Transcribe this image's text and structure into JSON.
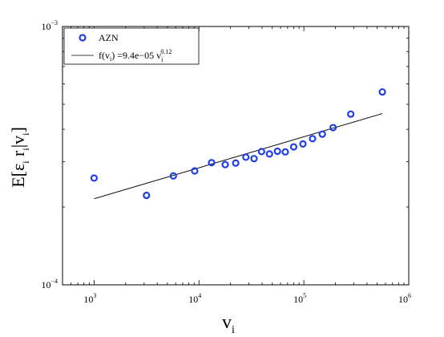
{
  "chart_data": {
    "type": "scatter",
    "x_scale": "log",
    "y_scale": "log",
    "xlim": [
      500,
      1000000
    ],
    "ylim": [
      0.0001,
      0.001
    ],
    "x_ticks": [
      {
        "value": 1000,
        "base": "10",
        "exp": "3"
      },
      {
        "value": 10000,
        "base": "10",
        "exp": "4"
      },
      {
        "value": 100000,
        "base": "10",
        "exp": "5"
      },
      {
        "value": 1000000,
        "base": "10",
        "exp": "6"
      }
    ],
    "y_ticks": [
      {
        "value": 0.0001,
        "base": "10",
        "exp": "−4"
      },
      {
        "value": 0.001,
        "base": "10",
        "exp": "−3"
      }
    ],
    "xlabel": {
      "main": "v",
      "sub": "i"
    },
    "ylabel": "E[ε_i r_i | v_i]",
    "ylabel_parts": {
      "p1": "E[ε",
      "s1": "i",
      "p2": " r",
      "s2": "i",
      "p3": "|v",
      "s3": "i",
      "p4": "]"
    },
    "legend": {
      "position": "top-left",
      "entries": [
        {
          "label": "AZN",
          "kind": "marker"
        },
        {
          "label": "f(v_i) =9.4e−05 v_i^0.12",
          "kind": "line",
          "parts": {
            "a": "f(v",
            "a_sub": "i",
            "b": ") =9.4e−05 v",
            "b_sub": "i",
            "b_sup": "0.12"
          }
        }
      ]
    },
    "series": [
      {
        "name": "AZN",
        "kind": "marker",
        "color": "#1f3fe6",
        "x": [
          1000,
          3160,
          5700,
          9100,
          13200,
          17800,
          22400,
          28000,
          33500,
          39500,
          47000,
          56000,
          66500,
          80000,
          98000,
          121000,
          150000,
          190000,
          280000,
          560000
        ],
        "y": [
          0.000259,
          0.000222,
          0.000264,
          0.000276,
          0.000297,
          0.000292,
          0.000296,
          0.000312,
          0.000308,
          0.000328,
          0.000321,
          0.000329,
          0.000327,
          0.000342,
          0.000351,
          0.000368,
          0.000383,
          0.000406,
          0.000458,
          0.000558
        ]
      },
      {
        "name": "f(v_i) =9.4e−05 v_i^0.12",
        "kind": "line",
        "color": "#000000",
        "coef": 9.4e-05,
        "power": 0.12,
        "x_range": [
          1000,
          560000
        ]
      }
    ]
  }
}
